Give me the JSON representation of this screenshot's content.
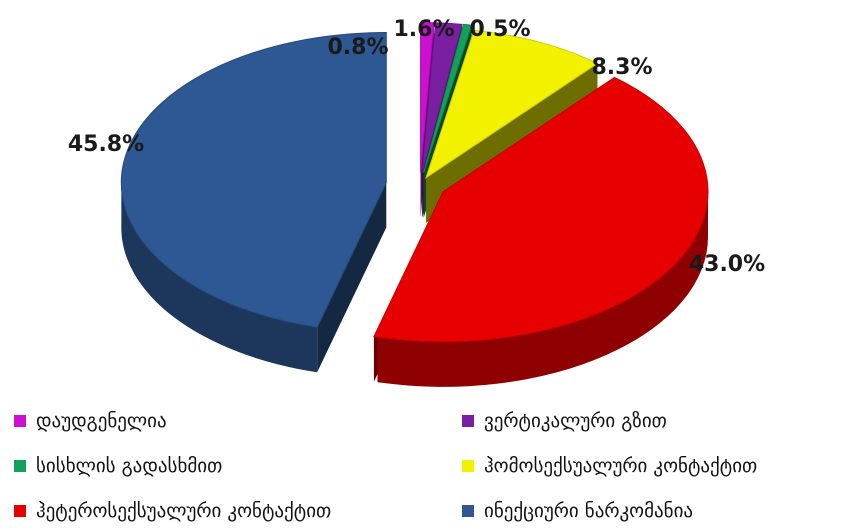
{
  "chart_data": {
    "type": "pie",
    "style": "3d-exploded",
    "title": "",
    "slices": [
      {
        "label": "დაუდგენელია",
        "value": 0.8,
        "display": "0.8%",
        "color": "#cc10d0"
      },
      {
        "label": "ვერტიკალური გზით",
        "value": 1.6,
        "display": "1.6%",
        "color": "#7a1fa2"
      },
      {
        "label": "სისხლის გადასხმით",
        "value": 0.5,
        "display": "0.5%",
        "color": "#12a05a"
      },
      {
        "label": "ჰომოსექსუალური კონტაქტით",
        "value": 8.3,
        "display": "8.3%",
        "color": "#f2f200"
      },
      {
        "label": "ჰეტეროსექსუალური კონტაქტით",
        "value": 43.0,
        "display": "43.0%",
        "color": "#e60000"
      },
      {
        "label": "ინექციური ნარკომანია",
        "value": 45.8,
        "display": "45.8%",
        "color": "#2d5893"
      }
    ],
    "legend_position": "bottom",
    "legend": [
      "დაუდგენელია",
      "ვერტიკალური გზით",
      "სისხლის გადასხმით",
      "ჰომოსექსუალური კონტაქტით",
      "ჰეტეროსექსუალური კონტაქტით",
      "ინექციური ნარკომანია"
    ]
  }
}
